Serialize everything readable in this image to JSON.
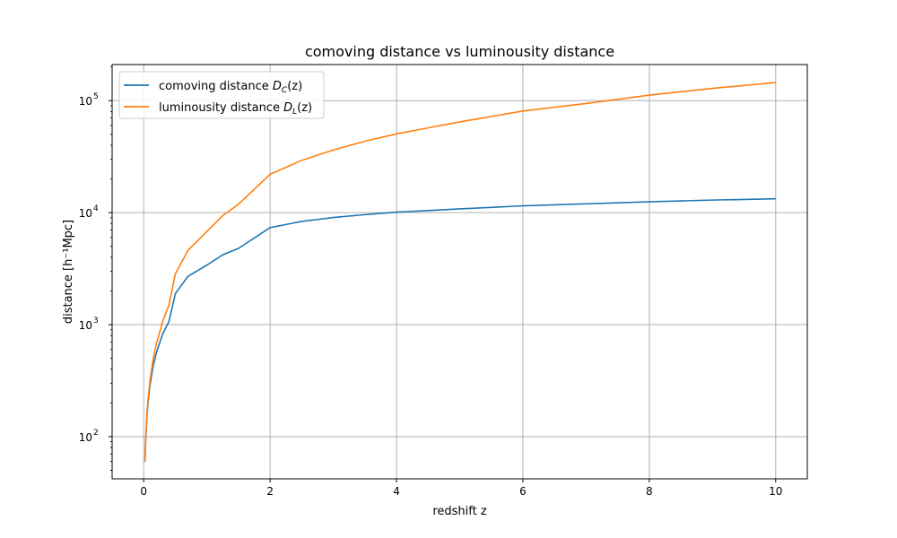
{
  "chart_data": {
    "type": "line",
    "title": "comoving distance vs luminousity distance",
    "xlabel": "redshift z",
    "ylabel": "distance [h⁻¹Mpc]",
    "xlim": [
      -0.5,
      10.5
    ],
    "ylim": [
      42,
      210000
    ],
    "yscale": "log",
    "grid": true,
    "legend_position": "top-left",
    "x_ticks": [
      0,
      2,
      4,
      6,
      8,
      10
    ],
    "x_tick_labels": [
      "0",
      "2",
      "4",
      "6",
      "8",
      "10"
    ],
    "y_ticks": [
      100,
      1000,
      10000,
      100000
    ],
    "y_tick_labels": [
      {
        "base": "10",
        "exp": "2"
      },
      {
        "base": "10",
        "exp": "3"
      },
      {
        "base": "10",
        "exp": "4"
      },
      {
        "base": "10",
        "exp": "5"
      }
    ],
    "x": [
      0.02,
      0.03,
      0.05,
      0.07,
      0.1,
      0.15,
      0.2,
      0.3,
      0.4,
      0.5,
      0.7,
      1.0,
      1.25,
      1.5,
      2.0,
      2.5,
      3.0,
      3.5,
      4.0,
      5.0,
      6.0,
      7.0,
      8.0,
      9.0,
      10.0
    ],
    "series": [
      {
        "name_prefix": "comoving distance ",
        "name_math_main": "D",
        "name_math_sub": "C",
        "name_suffix": "(z)",
        "color": "#1f77b4",
        "values": [
          60,
          89,
          148,
          205,
          290,
          430,
          560,
          825,
          1070,
          1890,
          2700,
          3400,
          4200,
          4800,
          7350,
          8350,
          9050,
          9600,
          10100,
          10800,
          11500,
          12000,
          12500,
          12950,
          13300
        ]
      },
      {
        "name_prefix": "luminousity distance ",
        "name_math_main": "D",
        "name_math_sub": "L",
        "name_suffix": "(z)",
        "color": "#ff7f0e",
        "values": [
          61,
          92,
          155,
          220,
          320,
          495,
          670,
          1070,
          1500,
          2840,
          4600,
          6800,
          9400,
          11900,
          22000,
          29300,
          36300,
          43400,
          50500,
          64600,
          80800,
          94300,
          112000,
          128700,
          145000
        ]
      }
    ]
  },
  "colors": {
    "grid": "#b0b0b0",
    "axes": "#000000",
    "legend_border": "#cccccc"
  }
}
